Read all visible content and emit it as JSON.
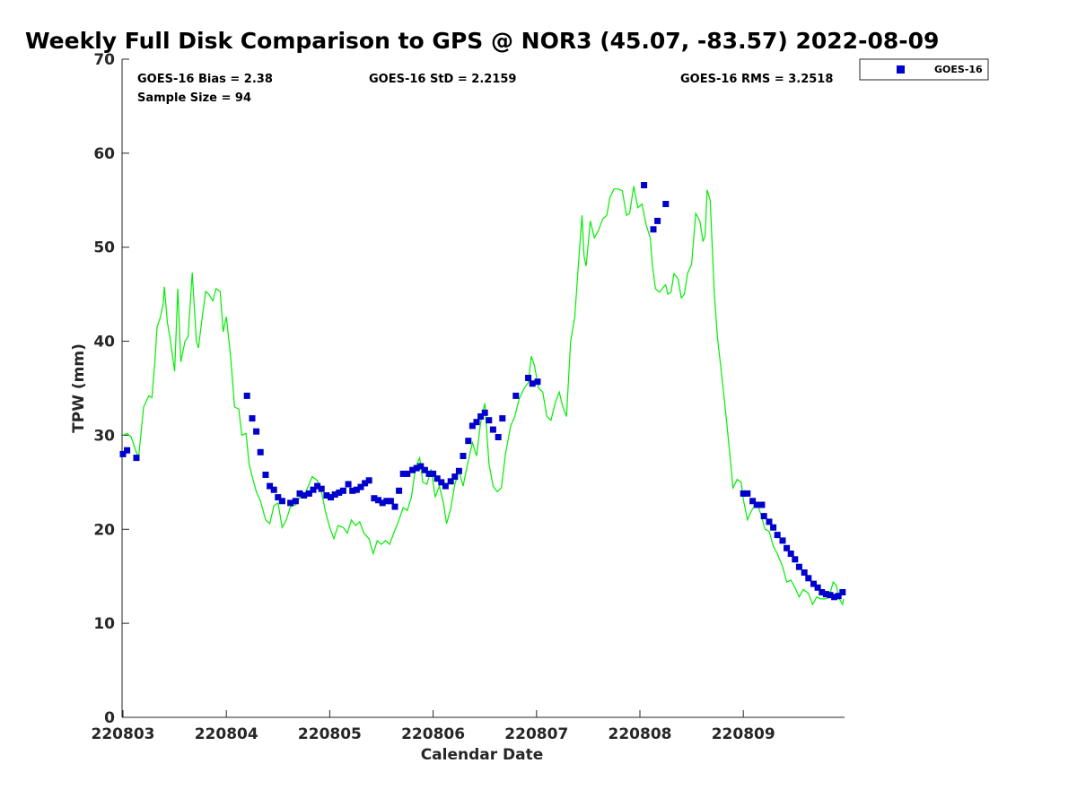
{
  "chart_data": {
    "type": "scatter",
    "title": "Weekly Full Disk Comparison to GPS @ NOR3 (45.07, -83.57) 2022-08-09",
    "xlabel": "Calendar Date",
    "ylabel": "TPW (mm)",
    "xlim": [
      0,
      6.97
    ],
    "ylim": [
      0,
      70
    ],
    "x_ticks": [
      {
        "value": 0,
        "label": "220803"
      },
      {
        "value": 1,
        "label": "220804"
      },
      {
        "value": 2,
        "label": "220805"
      },
      {
        "value": 3,
        "label": "220806"
      },
      {
        "value": 4,
        "label": "220807"
      },
      {
        "value": 5,
        "label": "220808"
      },
      {
        "value": 6,
        "label": "220809"
      }
    ],
    "y_ticks": [
      0,
      10,
      20,
      30,
      40,
      50,
      60,
      70
    ],
    "grid": false,
    "legend_position": "top-right, outside plot",
    "stats": {
      "bias": "GOES-16 Bias = 2.38",
      "std": "GOES-16 StD = 2.2159",
      "rms": "GOES-16 RMS = 3.2518",
      "sample": "Sample Size = 94"
    },
    "series": [
      {
        "name": "GOES-16",
        "kind": "markers",
        "color": "#0000cc",
        "points": [
          [
            0.0,
            28.0
          ],
          [
            0.04,
            28.4
          ],
          [
            0.13,
            27.6
          ],
          [
            1.2,
            34.2
          ],
          [
            1.25,
            31.8
          ],
          [
            1.29,
            30.4
          ],
          [
            1.33,
            28.2
          ],
          [
            1.38,
            25.8
          ],
          [
            1.42,
            24.6
          ],
          [
            1.46,
            24.2
          ],
          [
            1.5,
            23.4
          ],
          [
            1.54,
            23.0
          ],
          [
            1.62,
            22.8
          ],
          [
            1.67,
            23.0
          ],
          [
            1.71,
            23.8
          ],
          [
            1.75,
            23.6
          ],
          [
            1.8,
            23.8
          ],
          [
            1.84,
            24.2
          ],
          [
            1.88,
            24.6
          ],
          [
            1.92,
            24.3
          ],
          [
            1.97,
            23.6
          ],
          [
            2.01,
            23.4
          ],
          [
            2.05,
            23.7
          ],
          [
            2.09,
            23.9
          ],
          [
            2.13,
            24.1
          ],
          [
            2.18,
            24.8
          ],
          [
            2.22,
            24.1
          ],
          [
            2.26,
            24.2
          ],
          [
            2.3,
            24.5
          ],
          [
            2.34,
            24.9
          ],
          [
            2.38,
            25.2
          ],
          [
            2.43,
            23.3
          ],
          [
            2.47,
            23.1
          ],
          [
            2.51,
            22.8
          ],
          [
            2.55,
            23.0
          ],
          [
            2.59,
            23.0
          ],
          [
            2.63,
            22.4
          ],
          [
            2.67,
            24.1
          ],
          [
            2.71,
            25.9
          ],
          [
            2.75,
            25.9
          ],
          [
            2.8,
            26.3
          ],
          [
            2.84,
            26.5
          ],
          [
            2.88,
            26.7
          ],
          [
            2.92,
            26.3
          ],
          [
            2.96,
            25.9
          ],
          [
            3.0,
            25.9
          ],
          [
            3.04,
            25.4
          ],
          [
            3.08,
            25.0
          ],
          [
            3.12,
            24.6
          ],
          [
            3.17,
            25.1
          ],
          [
            3.21,
            25.6
          ],
          [
            3.25,
            26.2
          ],
          [
            3.29,
            27.8
          ],
          [
            3.34,
            29.4
          ],
          [
            3.38,
            31.0
          ],
          [
            3.42,
            31.4
          ],
          [
            3.46,
            32.0
          ],
          [
            3.5,
            32.4
          ],
          [
            3.54,
            31.6
          ],
          [
            3.58,
            30.6
          ],
          [
            3.63,
            29.8
          ],
          [
            3.67,
            31.8
          ],
          [
            3.8,
            34.2
          ],
          [
            3.92,
            36.1
          ],
          [
            3.96,
            35.5
          ],
          [
            4.01,
            35.7
          ],
          [
            5.04,
            56.6
          ],
          [
            5.13,
            51.9
          ],
          [
            5.17,
            52.8
          ],
          [
            5.25,
            54.6
          ],
          [
            6.0,
            23.8
          ],
          [
            6.04,
            23.8
          ],
          [
            6.09,
            23.0
          ],
          [
            6.13,
            22.6
          ],
          [
            6.18,
            22.6
          ],
          [
            6.2,
            21.4
          ],
          [
            6.25,
            20.8
          ],
          [
            6.29,
            20.2
          ],
          [
            6.33,
            19.4
          ],
          [
            6.38,
            18.8
          ],
          [
            6.42,
            18.0
          ],
          [
            6.46,
            17.4
          ],
          [
            6.5,
            16.8
          ],
          [
            6.54,
            16.0
          ],
          [
            6.59,
            15.4
          ],
          [
            6.63,
            14.8
          ],
          [
            6.68,
            14.2
          ],
          [
            6.72,
            13.8
          ],
          [
            6.76,
            13.3
          ],
          [
            6.8,
            13.1
          ],
          [
            6.84,
            13.0
          ],
          [
            6.88,
            12.8
          ],
          [
            6.92,
            12.9
          ],
          [
            6.96,
            13.3
          ]
        ]
      },
      {
        "name": "",
        "kind": "line",
        "color": "#00ee00",
        "points": [
          [
            0.0,
            30.0
          ],
          [
            0.04,
            30.2
          ],
          [
            0.08,
            29.8
          ],
          [
            0.12,
            28.5
          ],
          [
            0.15,
            27.5
          ],
          [
            0.2,
            33.0
          ],
          [
            0.25,
            34.2
          ],
          [
            0.28,
            34.0
          ],
          [
            0.31,
            38.0
          ],
          [
            0.33,
            41.5
          ],
          [
            0.36,
            42.5
          ],
          [
            0.39,
            44.0
          ],
          [
            0.4,
            45.8
          ],
          [
            0.43,
            42.0
          ],
          [
            0.46,
            40.0
          ],
          [
            0.5,
            36.8
          ],
          [
            0.53,
            45.6
          ],
          [
            0.56,
            37.8
          ],
          [
            0.6,
            40.0
          ],
          [
            0.63,
            40.5
          ],
          [
            0.67,
            47.3
          ],
          [
            0.71,
            40.0
          ],
          [
            0.73,
            39.3
          ],
          [
            0.76,
            42.0
          ],
          [
            0.8,
            45.3
          ],
          [
            0.83,
            45.0
          ],
          [
            0.87,
            44.3
          ],
          [
            0.9,
            45.6
          ],
          [
            0.94,
            45.3
          ],
          [
            0.97,
            41.0
          ],
          [
            1.0,
            42.6
          ],
          [
            1.04,
            38.5
          ],
          [
            1.08,
            33.0
          ],
          [
            1.12,
            32.8
          ],
          [
            1.15,
            30.0
          ],
          [
            1.19,
            30.2
          ],
          [
            1.22,
            27.0
          ],
          [
            1.25,
            25.6
          ],
          [
            1.29,
            24.0
          ],
          [
            1.33,
            23.0
          ],
          [
            1.38,
            21.0
          ],
          [
            1.42,
            20.6
          ],
          [
            1.46,
            22.5
          ],
          [
            1.5,
            22.8
          ],
          [
            1.54,
            20.2
          ],
          [
            1.58,
            21.0
          ],
          [
            1.62,
            22.4
          ],
          [
            1.67,
            22.6
          ],
          [
            1.71,
            23.4
          ],
          [
            1.75,
            23.6
          ],
          [
            1.79,
            24.5
          ],
          [
            1.83,
            25.6
          ],
          [
            1.88,
            25.2
          ],
          [
            1.92,
            24.0
          ],
          [
            1.96,
            21.8
          ],
          [
            2.0,
            20.2
          ],
          [
            2.04,
            19.0
          ],
          [
            2.08,
            20.4
          ],
          [
            2.13,
            20.2
          ],
          [
            2.17,
            19.6
          ],
          [
            2.21,
            21.0
          ],
          [
            2.25,
            20.4
          ],
          [
            2.29,
            20.8
          ],
          [
            2.33,
            19.6
          ],
          [
            2.38,
            19.0
          ],
          [
            2.42,
            17.4
          ],
          [
            2.46,
            18.8
          ],
          [
            2.5,
            18.4
          ],
          [
            2.54,
            18.8
          ],
          [
            2.58,
            18.4
          ],
          [
            2.62,
            19.6
          ],
          [
            2.67,
            21.0
          ],
          [
            2.71,
            22.3
          ],
          [
            2.75,
            22.0
          ],
          [
            2.79,
            23.4
          ],
          [
            2.83,
            26.6
          ],
          [
            2.87,
            27.6
          ],
          [
            2.9,
            25.0
          ],
          [
            2.94,
            24.8
          ],
          [
            2.98,
            26.4
          ],
          [
            3.02,
            23.4
          ],
          [
            3.06,
            24.6
          ],
          [
            3.1,
            22.8
          ],
          [
            3.13,
            20.6
          ],
          [
            3.17,
            22.2
          ],
          [
            3.21,
            24.8
          ],
          [
            3.25,
            26.2
          ],
          [
            3.29,
            24.6
          ],
          [
            3.33,
            26.8
          ],
          [
            3.38,
            29.2
          ],
          [
            3.42,
            27.8
          ],
          [
            3.46,
            31.4
          ],
          [
            3.5,
            33.4
          ],
          [
            3.54,
            27.0
          ],
          [
            3.58,
            24.6
          ],
          [
            3.62,
            24.0
          ],
          [
            3.66,
            24.4
          ],
          [
            3.7,
            28.0
          ],
          [
            3.75,
            31.0
          ],
          [
            3.79,
            32.0
          ],
          [
            3.83,
            33.8
          ],
          [
            3.88,
            35.0
          ],
          [
            3.92,
            35.6
          ],
          [
            3.95,
            38.4
          ],
          [
            3.98,
            37.4
          ],
          [
            4.02,
            35.0
          ],
          [
            4.06,
            34.6
          ],
          [
            4.1,
            32.0
          ],
          [
            4.14,
            31.6
          ],
          [
            4.18,
            33.4
          ],
          [
            4.22,
            34.6
          ],
          [
            4.25,
            33.2
          ],
          [
            4.29,
            32.0
          ],
          [
            4.33,
            40.0
          ],
          [
            4.37,
            42.6
          ],
          [
            4.4,
            47.4
          ],
          [
            4.44,
            53.4
          ],
          [
            4.46,
            49.0
          ],
          [
            4.48,
            48.0
          ],
          [
            4.52,
            52.8
          ],
          [
            4.56,
            51.0
          ],
          [
            4.6,
            51.8
          ],
          [
            4.64,
            53.0
          ],
          [
            4.68,
            53.4
          ],
          [
            4.71,
            55.3
          ],
          [
            4.75,
            56.2
          ],
          [
            4.79,
            56.2
          ],
          [
            4.83,
            56.0
          ],
          [
            4.87,
            53.4
          ],
          [
            4.9,
            53.6
          ],
          [
            4.94,
            56.5
          ],
          [
            4.98,
            54.2
          ],
          [
            5.02,
            54.6
          ],
          [
            5.06,
            52.4
          ],
          [
            5.1,
            51.0
          ],
          [
            5.12,
            48.2
          ],
          [
            5.15,
            45.6
          ],
          [
            5.19,
            45.2
          ],
          [
            5.23,
            45.8
          ],
          [
            5.25,
            46.0
          ],
          [
            5.27,
            45.0
          ],
          [
            5.3,
            45.2
          ],
          [
            5.33,
            47.2
          ],
          [
            5.37,
            46.6
          ],
          [
            5.4,
            44.6
          ],
          [
            5.43,
            45.0
          ],
          [
            5.46,
            47.2
          ],
          [
            5.5,
            48.2
          ],
          [
            5.54,
            53.6
          ],
          [
            5.58,
            52.8
          ],
          [
            5.61,
            50.6
          ],
          [
            5.63,
            51.2
          ],
          [
            5.65,
            56.1
          ],
          [
            5.68,
            55.0
          ],
          [
            5.72,
            45.0
          ],
          [
            5.75,
            40.4
          ],
          [
            5.79,
            36.5
          ],
          [
            5.83,
            32.4
          ],
          [
            5.87,
            28.0
          ],
          [
            5.9,
            24.4
          ],
          [
            5.94,
            25.3
          ],
          [
            5.98,
            25.0
          ],
          [
            6.0,
            23.2
          ],
          [
            6.04,
            21.0
          ],
          [
            6.08,
            22.0
          ],
          [
            6.13,
            22.8
          ],
          [
            6.17,
            21.6
          ],
          [
            6.21,
            20.0
          ],
          [
            6.25,
            19.8
          ],
          [
            6.29,
            18.2
          ],
          [
            6.33,
            17.4
          ],
          [
            6.38,
            16.0
          ],
          [
            6.42,
            14.4
          ],
          [
            6.46,
            14.6
          ],
          [
            6.5,
            13.8
          ],
          [
            6.54,
            12.8
          ],
          [
            6.58,
            13.6
          ],
          [
            6.63,
            13.2
          ],
          [
            6.67,
            12.0
          ],
          [
            6.71,
            12.8
          ],
          [
            6.75,
            12.6
          ],
          [
            6.79,
            12.6
          ],
          [
            6.83,
            12.8
          ],
          [
            6.87,
            14.4
          ],
          [
            6.9,
            14.0
          ],
          [
            6.93,
            12.6
          ],
          [
            6.96,
            12.0
          ],
          [
            6.97,
            12.6
          ]
        ]
      }
    ]
  }
}
